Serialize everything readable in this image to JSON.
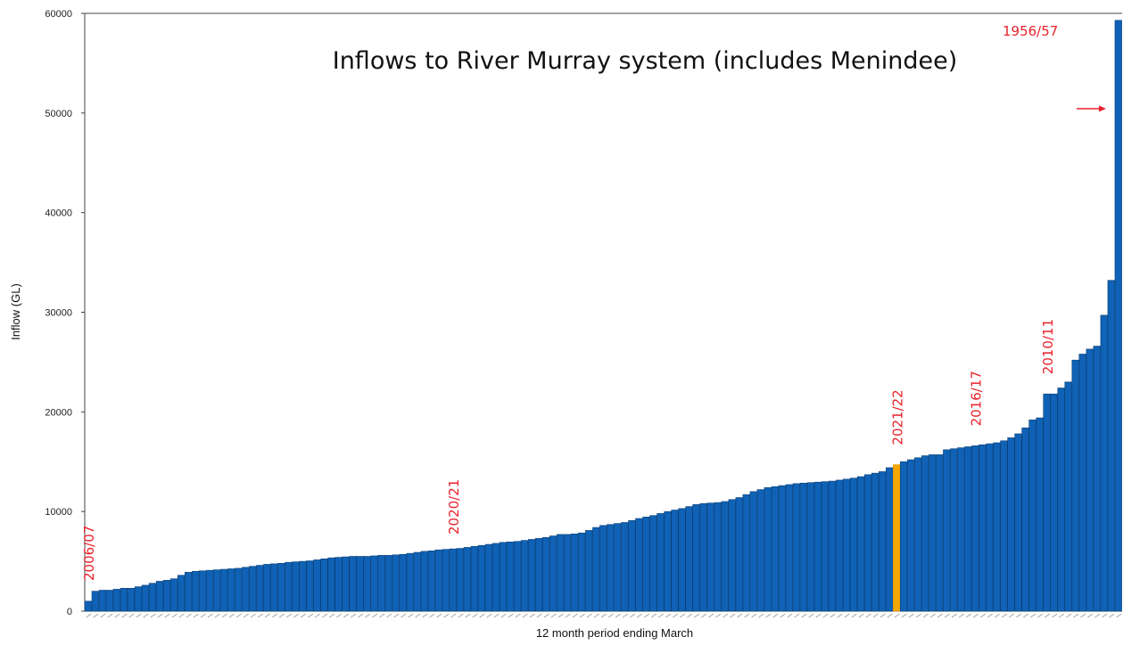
{
  "chart_data": {
    "type": "bar",
    "title": "Inflows to River Murray system (includes Menindee)",
    "xlabel": "12 month period ending March",
    "ylabel": "Inflow (GL)",
    "ylim": [
      0,
      60000
    ],
    "yticks": [
      "0",
      "10000",
      "20000",
      "30000",
      "40000",
      "50000",
      "60000"
    ],
    "grid": false,
    "legend": "none",
    "bar_color": "#0f62b5",
    "highlight_color": "#f5a800",
    "annotation_color": "#e8202a",
    "highlight_index": 113,
    "values": [
      1000,
      2000,
      2100,
      2100,
      2200,
      2300,
      2300,
      2450,
      2600,
      2800,
      3000,
      3100,
      3250,
      3600,
      3900,
      4000,
      4050,
      4100,
      4150,
      4200,
      4250,
      4300,
      4400,
      4500,
      4600,
      4700,
      4750,
      4800,
      4900,
      4950,
      5000,
      5050,
      5150,
      5250,
      5350,
      5400,
      5450,
      5500,
      5500,
      5500,
      5550,
      5600,
      5600,
      5650,
      5700,
      5800,
      5900,
      6000,
      6050,
      6150,
      6200,
      6250,
      6300,
      6400,
      6500,
      6600,
      6700,
      6800,
      6900,
      6950,
      7000,
      7100,
      7200,
      7300,
      7400,
      7550,
      7700,
      7700,
      7750,
      7850,
      8100,
      8400,
      8600,
      8700,
      8800,
      8900,
      9100,
      9300,
      9450,
      9600,
      9800,
      10000,
      10150,
      10300,
      10500,
      10700,
      10800,
      10850,
      10900,
      11000,
      11200,
      11400,
      11700,
      12000,
      12200,
      12400,
      12500,
      12600,
      12700,
      12800,
      12850,
      12900,
      12950,
      13000,
      13050,
      13150,
      13250,
      13350,
      13500,
      13700,
      13850,
      14000,
      14400,
      14700,
      15000,
      15200,
      15400,
      15600,
      15700,
      15700,
      16200,
      16300,
      16400,
      16500,
      16600,
      16700,
      16800,
      16900,
      17100,
      17400,
      17800,
      18400,
      19200,
      19400,
      21800,
      21800,
      22400,
      23000,
      25200,
      25800,
      26300,
      26600,
      29700,
      33200,
      59300
    ],
    "annotations": [
      {
        "text": "2006/07",
        "index": 0,
        "value": 1000
      },
      {
        "text": "2020/21",
        "index": 51,
        "value": 6200
      },
      {
        "text": "2021/22",
        "index": 113,
        "value": 14700
      },
      {
        "text": "2016/17",
        "index": 124,
        "value": 16600
      },
      {
        "text": "2010/11",
        "index": 134,
        "value": 21800
      },
      {
        "text": "1956/57",
        "index": 144,
        "value": 59300
      }
    ]
  }
}
